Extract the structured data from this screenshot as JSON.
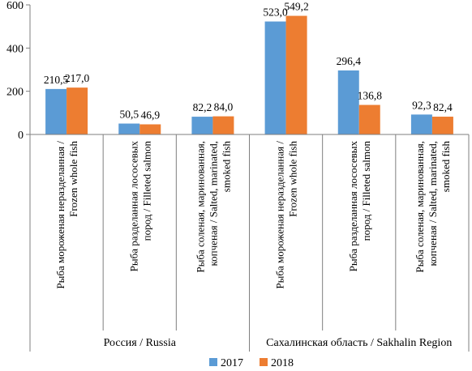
{
  "chart_data": {
    "type": "bar",
    "ylim": [
      0,
      600
    ],
    "yticks": [
      0,
      200,
      400,
      600
    ],
    "grid": false,
    "legend_position": "bottom",
    "categories": [
      [
        "Рыба мороженая неразделанная /",
        "Frozen whole fish"
      ],
      [
        "Рыба разделанная лососевых",
        "пород / Filleted salmon"
      ],
      [
        "Рыба соленая, маринованная,",
        "копченая / Salted, marinated,",
        "smoked fish"
      ],
      [
        "Рыба мороженая неразделанная /",
        "Frozen whole fish"
      ],
      [
        "Рыба разделанная лососевых",
        "пород / Filleted salmon"
      ],
      [
        "Рыба соленая, маринованная,",
        "копченая / Salted, marinated,",
        "smoked fish"
      ]
    ],
    "groups": [
      {
        "label": "Россия / Russia",
        "categories": [
          0,
          1,
          2
        ]
      },
      {
        "label": "Сахалинская область / Sakhalin Region",
        "categories": [
          3,
          4,
          5
        ]
      }
    ],
    "series": [
      {
        "name": "2017",
        "color": "#5b9bd5",
        "values": [
          210.5,
          50.5,
          82.2,
          523.0,
          296.4,
          92.3
        ],
        "labels": [
          "210,5",
          "50,5",
          "82,2",
          "523,0",
          "296,4",
          "92,3"
        ]
      },
      {
        "name": "2018",
        "color": "#ed7d31",
        "values": [
          217.0,
          46.9,
          84.0,
          549.2,
          136.8,
          82.4
        ],
        "labels": [
          "217,0",
          "46,9",
          "84,0",
          "549,2",
          "136,8",
          "82,4"
        ]
      }
    ]
  }
}
